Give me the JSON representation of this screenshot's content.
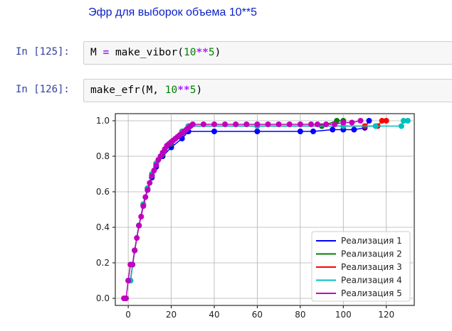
{
  "markdown": {
    "heading": "Эфр для выборок объема 10**5"
  },
  "cells": [
    {
      "prompt": "In [125]:",
      "code": {
        "var": "M",
        "eq": "=",
        "func": "make_vibor(",
        "num": "10",
        "op": "**",
        "num2": "5",
        "close": ")"
      }
    },
    {
      "prompt": "In [126]:",
      "code": {
        "func": "make_efr(M, ",
        "num": "10",
        "op": "**",
        "num2": "5",
        "close": ")"
      }
    }
  ],
  "chart_data": {
    "type": "scatter",
    "xlim": [
      -6,
      133
    ],
    "ylim": [
      -0.04,
      1.04
    ],
    "xticks": [
      0,
      20,
      40,
      60,
      80,
      100,
      120
    ],
    "yticks": [
      0.0,
      0.2,
      0.4,
      0.6,
      0.8,
      1.0
    ],
    "xtick_labels": [
      "0",
      "20",
      "40",
      "60",
      "80",
      "100",
      "120"
    ],
    "ytick_labels": [
      "0.0",
      "0.2",
      "0.4",
      "0.6",
      "0.8",
      "1.0"
    ],
    "grid": true,
    "legend": "lower-right",
    "series": [
      {
        "name": "Реализация 1",
        "color": "#0000ff",
        "points": [
          [
            1,
            0.1
          ],
          [
            3,
            0.27
          ],
          [
            5,
            0.41
          ],
          [
            7,
            0.52
          ],
          [
            9,
            0.61
          ],
          [
            11,
            0.68
          ],
          [
            13,
            0.74
          ],
          [
            16,
            0.8
          ],
          [
            20,
            0.85
          ],
          [
            25,
            0.9
          ],
          [
            28,
            0.94
          ],
          [
            40,
            0.94
          ],
          [
            60,
            0.94
          ],
          [
            80,
            0.94
          ],
          [
            86,
            0.94
          ],
          [
            95,
            0.95
          ],
          [
            100,
            0.95
          ],
          [
            105,
            0.95
          ],
          [
            110,
            0.96
          ],
          [
            112,
            1.0
          ]
        ]
      },
      {
        "name": "Реализация 2",
        "color": "#008000",
        "points": [
          [
            1,
            0.1
          ],
          [
            3,
            0.27
          ],
          [
            5,
            0.41
          ],
          [
            7,
            0.53
          ],
          [
            9,
            0.62
          ],
          [
            11,
            0.69
          ],
          [
            13,
            0.75
          ],
          [
            16,
            0.81
          ],
          [
            20,
            0.87
          ],
          [
            25,
            0.93
          ],
          [
            28,
            0.97
          ],
          [
            60,
            0.97
          ],
          [
            90,
            0.97
          ],
          [
            97,
            1.0
          ],
          [
            100,
            1.0
          ]
        ]
      },
      {
        "name": "Реализация 3",
        "color": "#ff0000",
        "points": [
          [
            1,
            0.1
          ],
          [
            3,
            0.27
          ],
          [
            5,
            0.41
          ],
          [
            7,
            0.53
          ],
          [
            9,
            0.62
          ],
          [
            11,
            0.7
          ],
          [
            13,
            0.76
          ],
          [
            16,
            0.82
          ],
          [
            20,
            0.88
          ],
          [
            25,
            0.94
          ],
          [
            28,
            0.97
          ],
          [
            60,
            0.97
          ],
          [
            100,
            0.97
          ],
          [
            110,
            0.97
          ],
          [
            116,
            0.97
          ],
          [
            118,
            1.0
          ],
          [
            120,
            1.0
          ]
        ]
      },
      {
        "name": "Реализация 4",
        "color": "#00bfbf",
        "points": [
          [
            1,
            0.1
          ],
          [
            3,
            0.27
          ],
          [
            5,
            0.41
          ],
          [
            7,
            0.53
          ],
          [
            9,
            0.62
          ],
          [
            11,
            0.7
          ],
          [
            13,
            0.76
          ],
          [
            16,
            0.82
          ],
          [
            20,
            0.88
          ],
          [
            25,
            0.94
          ],
          [
            28,
            0.97
          ],
          [
            60,
            0.97
          ],
          [
            100,
            0.97
          ],
          [
            115,
            0.97
          ],
          [
            127,
            0.97
          ],
          [
            128,
            1.0
          ],
          [
            130,
            1.0
          ]
        ]
      },
      {
        "name": "Реализация 5",
        "color": "#bf00bf",
        "points": [
          [
            -2,
            0.0
          ],
          [
            -1,
            0.0
          ],
          [
            0,
            0.1
          ],
          [
            1,
            0.19
          ],
          [
            2,
            0.19
          ],
          [
            3,
            0.27
          ],
          [
            4,
            0.34
          ],
          [
            5,
            0.41
          ],
          [
            6,
            0.46
          ],
          [
            7,
            0.52
          ],
          [
            8,
            0.57
          ],
          [
            9,
            0.61
          ],
          [
            10,
            0.65
          ],
          [
            11,
            0.69
          ],
          [
            12,
            0.72
          ],
          [
            13,
            0.75
          ],
          [
            14,
            0.78
          ],
          [
            15,
            0.8
          ],
          [
            16,
            0.82
          ],
          [
            17,
            0.84
          ],
          [
            18,
            0.86
          ],
          [
            19,
            0.87
          ],
          [
            20,
            0.88
          ],
          [
            21,
            0.89
          ],
          [
            22,
            0.9
          ],
          [
            23,
            0.91
          ],
          [
            24,
            0.92
          ],
          [
            25,
            0.93
          ],
          [
            26,
            0.94
          ],
          [
            27,
            0.95
          ],
          [
            28,
            0.96
          ],
          [
            29,
            0.97
          ],
          [
            30,
            0.98
          ],
          [
            35,
            0.98
          ],
          [
            40,
            0.98
          ],
          [
            45,
            0.98
          ],
          [
            50,
            0.98
          ],
          [
            55,
            0.98
          ],
          [
            60,
            0.98
          ],
          [
            65,
            0.98
          ],
          [
            70,
            0.98
          ],
          [
            75,
            0.98
          ],
          [
            80,
            0.98
          ],
          [
            85,
            0.98
          ],
          [
            88,
            0.98
          ],
          [
            92,
            0.98
          ],
          [
            96,
            0.98
          ],
          [
            100,
            0.99
          ],
          [
            104,
            0.99
          ],
          [
            108,
            1.0
          ]
        ]
      }
    ]
  }
}
